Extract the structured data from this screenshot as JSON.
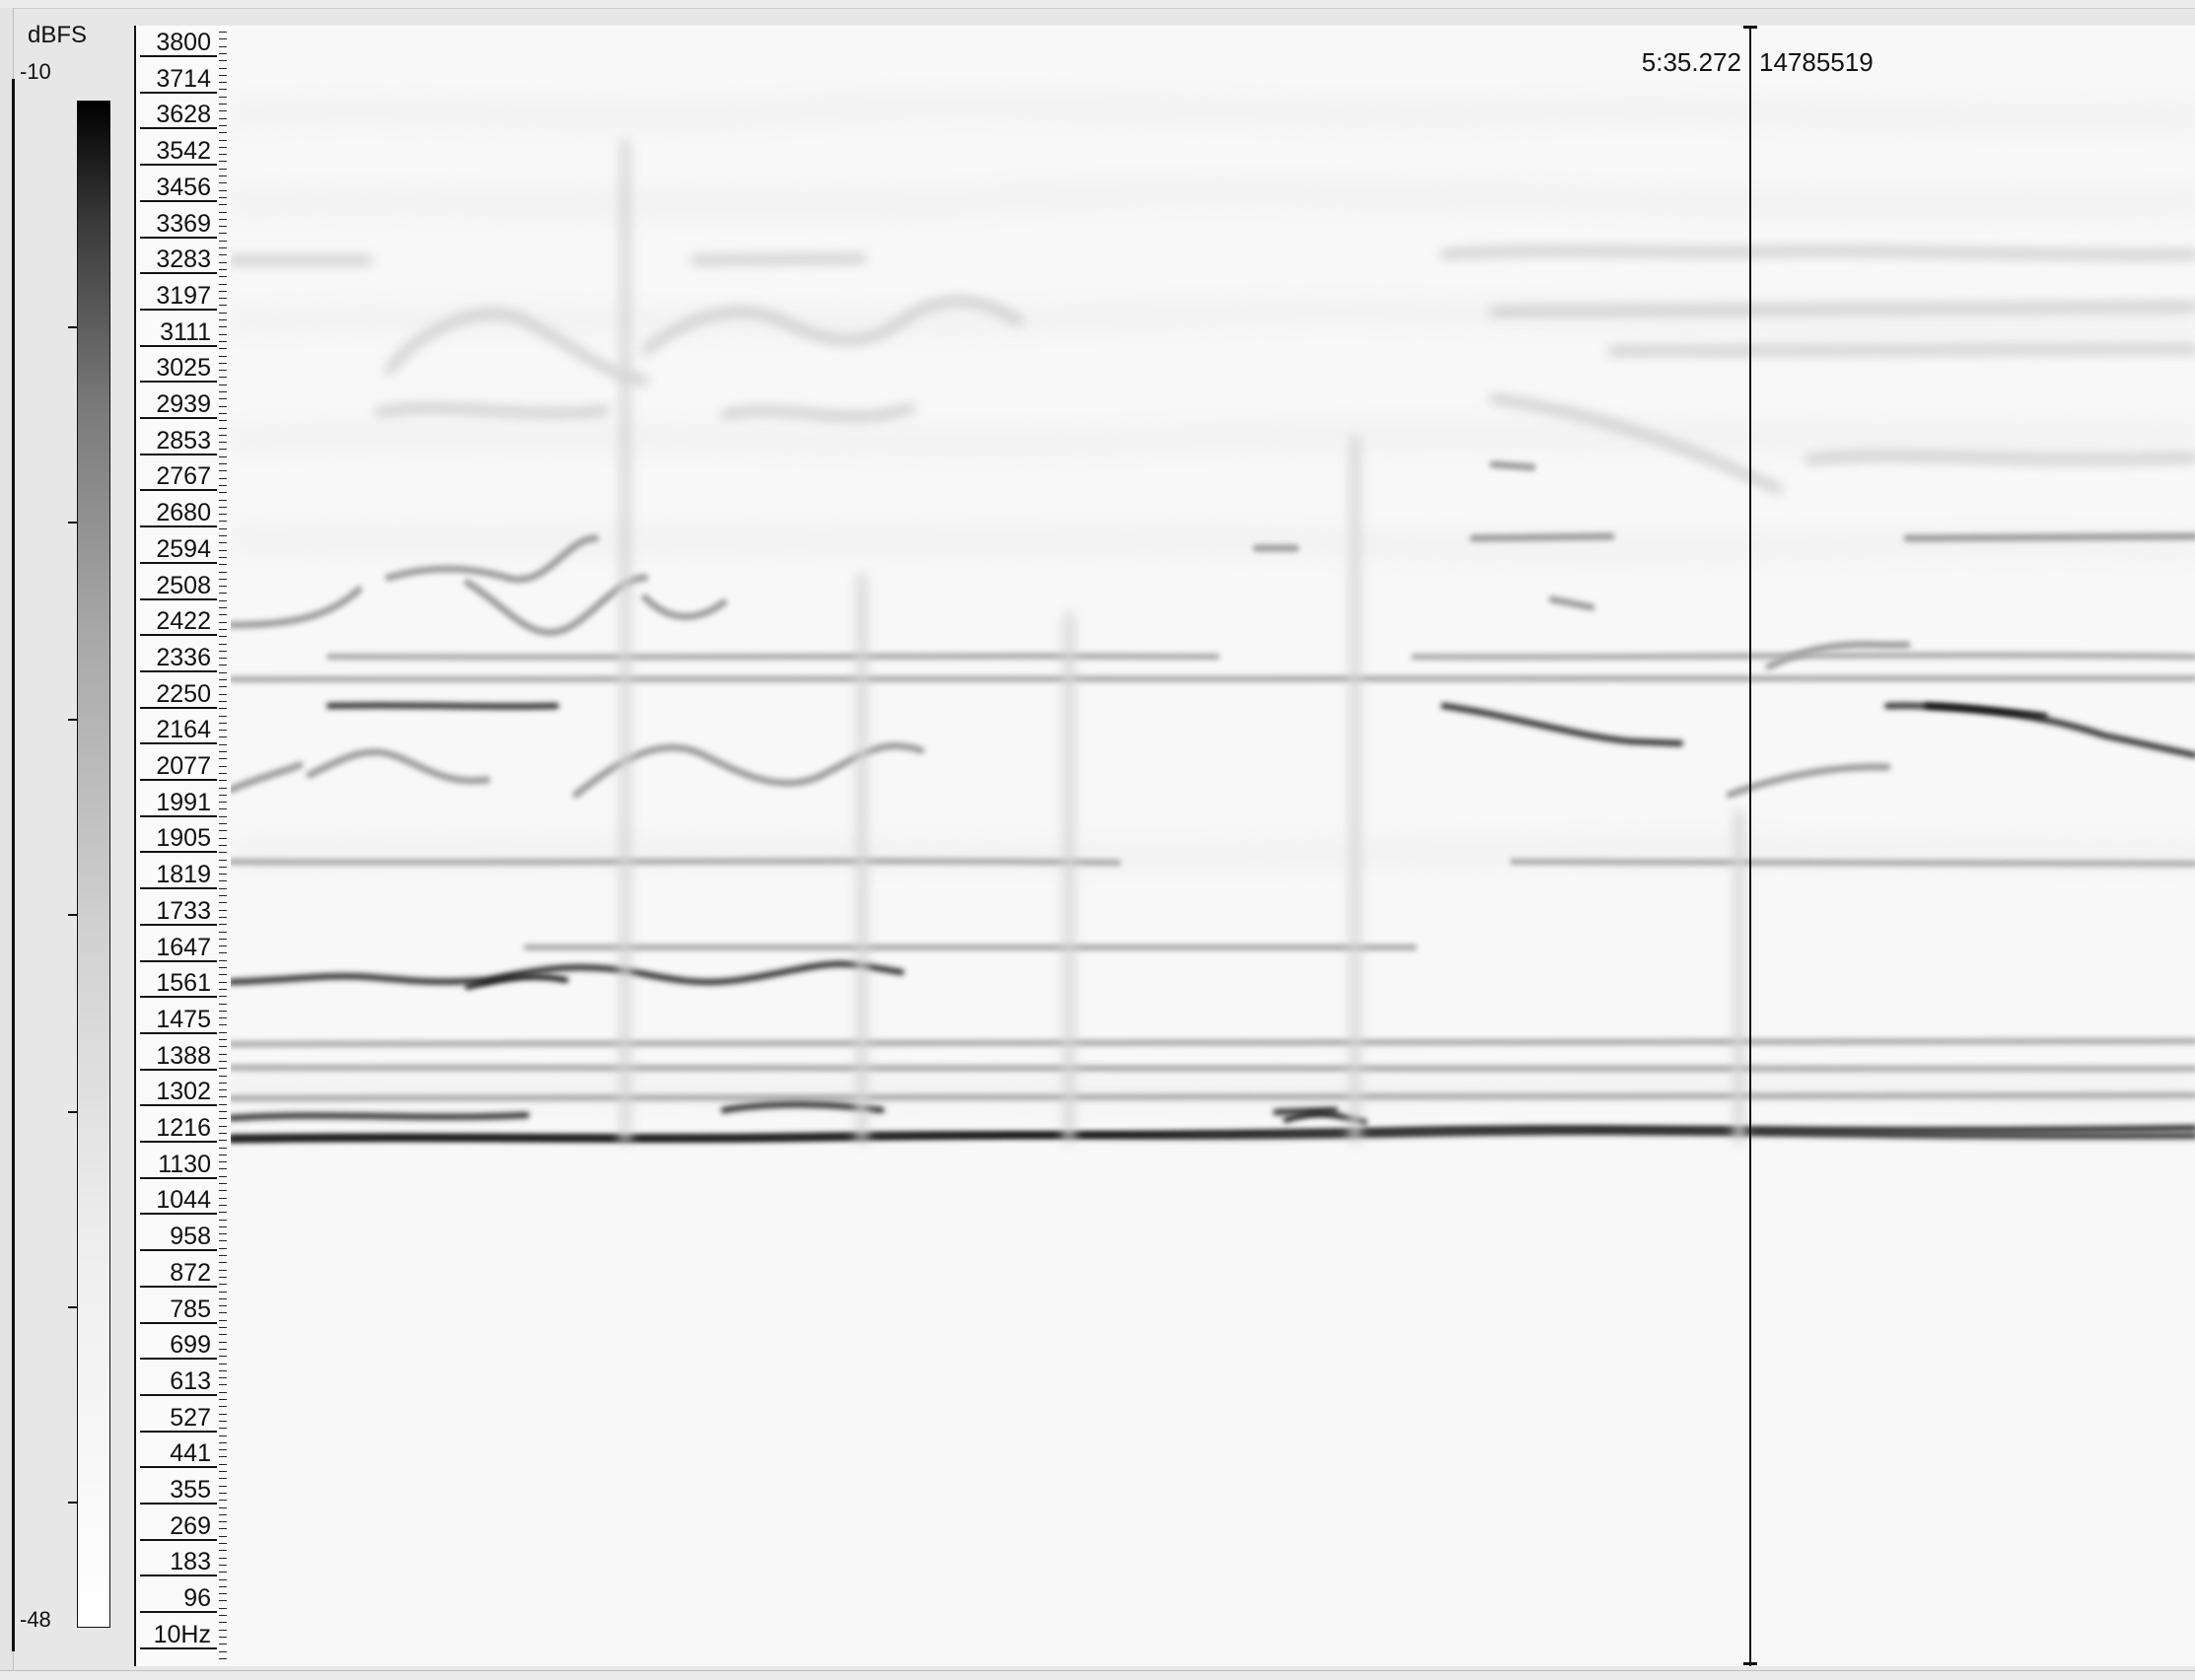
{
  "color_scale": {
    "title": "dBFS",
    "max_label": "-10",
    "min_label": "-48",
    "colors": {
      "high": "#000000",
      "low": "#ffffff"
    }
  },
  "frequency_axis": {
    "labels": [
      "3800",
      "3714",
      "3628",
      "3542",
      "3456",
      "3369",
      "3283",
      "3197",
      "3111",
      "3025",
      "2939",
      "2853",
      "2767",
      "2680",
      "2594",
      "2508",
      "2422",
      "2336",
      "2250",
      "2164",
      "2077",
      "1991",
      "1905",
      "1819",
      "1733",
      "1647",
      "1561",
      "1475",
      "1388",
      "1302",
      "1216",
      "1130",
      "1044",
      "958",
      "872",
      "785",
      "699",
      "613",
      "527",
      "441",
      "355",
      "269",
      "183",
      "96",
      "10Hz"
    ]
  },
  "cursor": {
    "time": "5:35.272",
    "sample": "14785519"
  }
}
